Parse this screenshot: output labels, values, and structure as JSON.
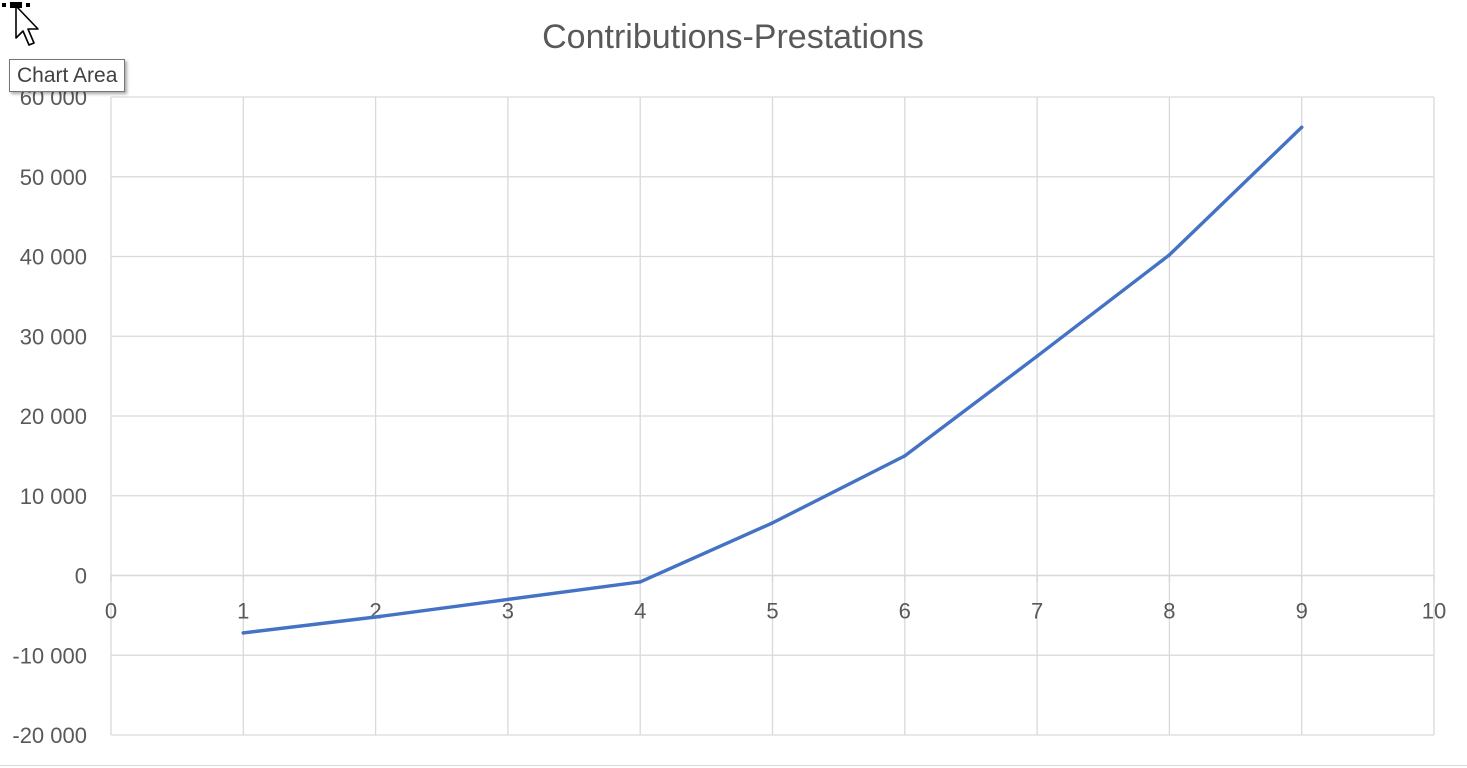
{
  "chart_data": {
    "type": "line",
    "title": "Contributions-Prestations",
    "xlabel": "",
    "ylabel": "",
    "xlim": [
      0,
      10
    ],
    "ylim": [
      -20000,
      60000
    ],
    "x_ticks": [
      "0",
      "1",
      "2",
      "3",
      "4",
      "5",
      "6",
      "7",
      "8",
      "9",
      "10"
    ],
    "y_ticks": [
      "-20 000",
      "-10 000",
      "0",
      "10 000",
      "20 000",
      "30 000",
      "40 000",
      "50 000",
      "60 000"
    ],
    "grid": true,
    "legend": "none",
    "series": [
      {
        "color": "#4472c4",
        "x": [
          1,
          2,
          3,
          4,
          5,
          6,
          7,
          8,
          9
        ],
        "y": [
          -7200,
          -5200,
          -3000,
          -800,
          6600,
          15000,
          27500,
          40200,
          56200
        ]
      }
    ]
  },
  "tooltip": {
    "label": "Chart Area"
  },
  "icons": {
    "cursor": "pointer-cursor-icon",
    "handle": "move-handle-icon"
  }
}
